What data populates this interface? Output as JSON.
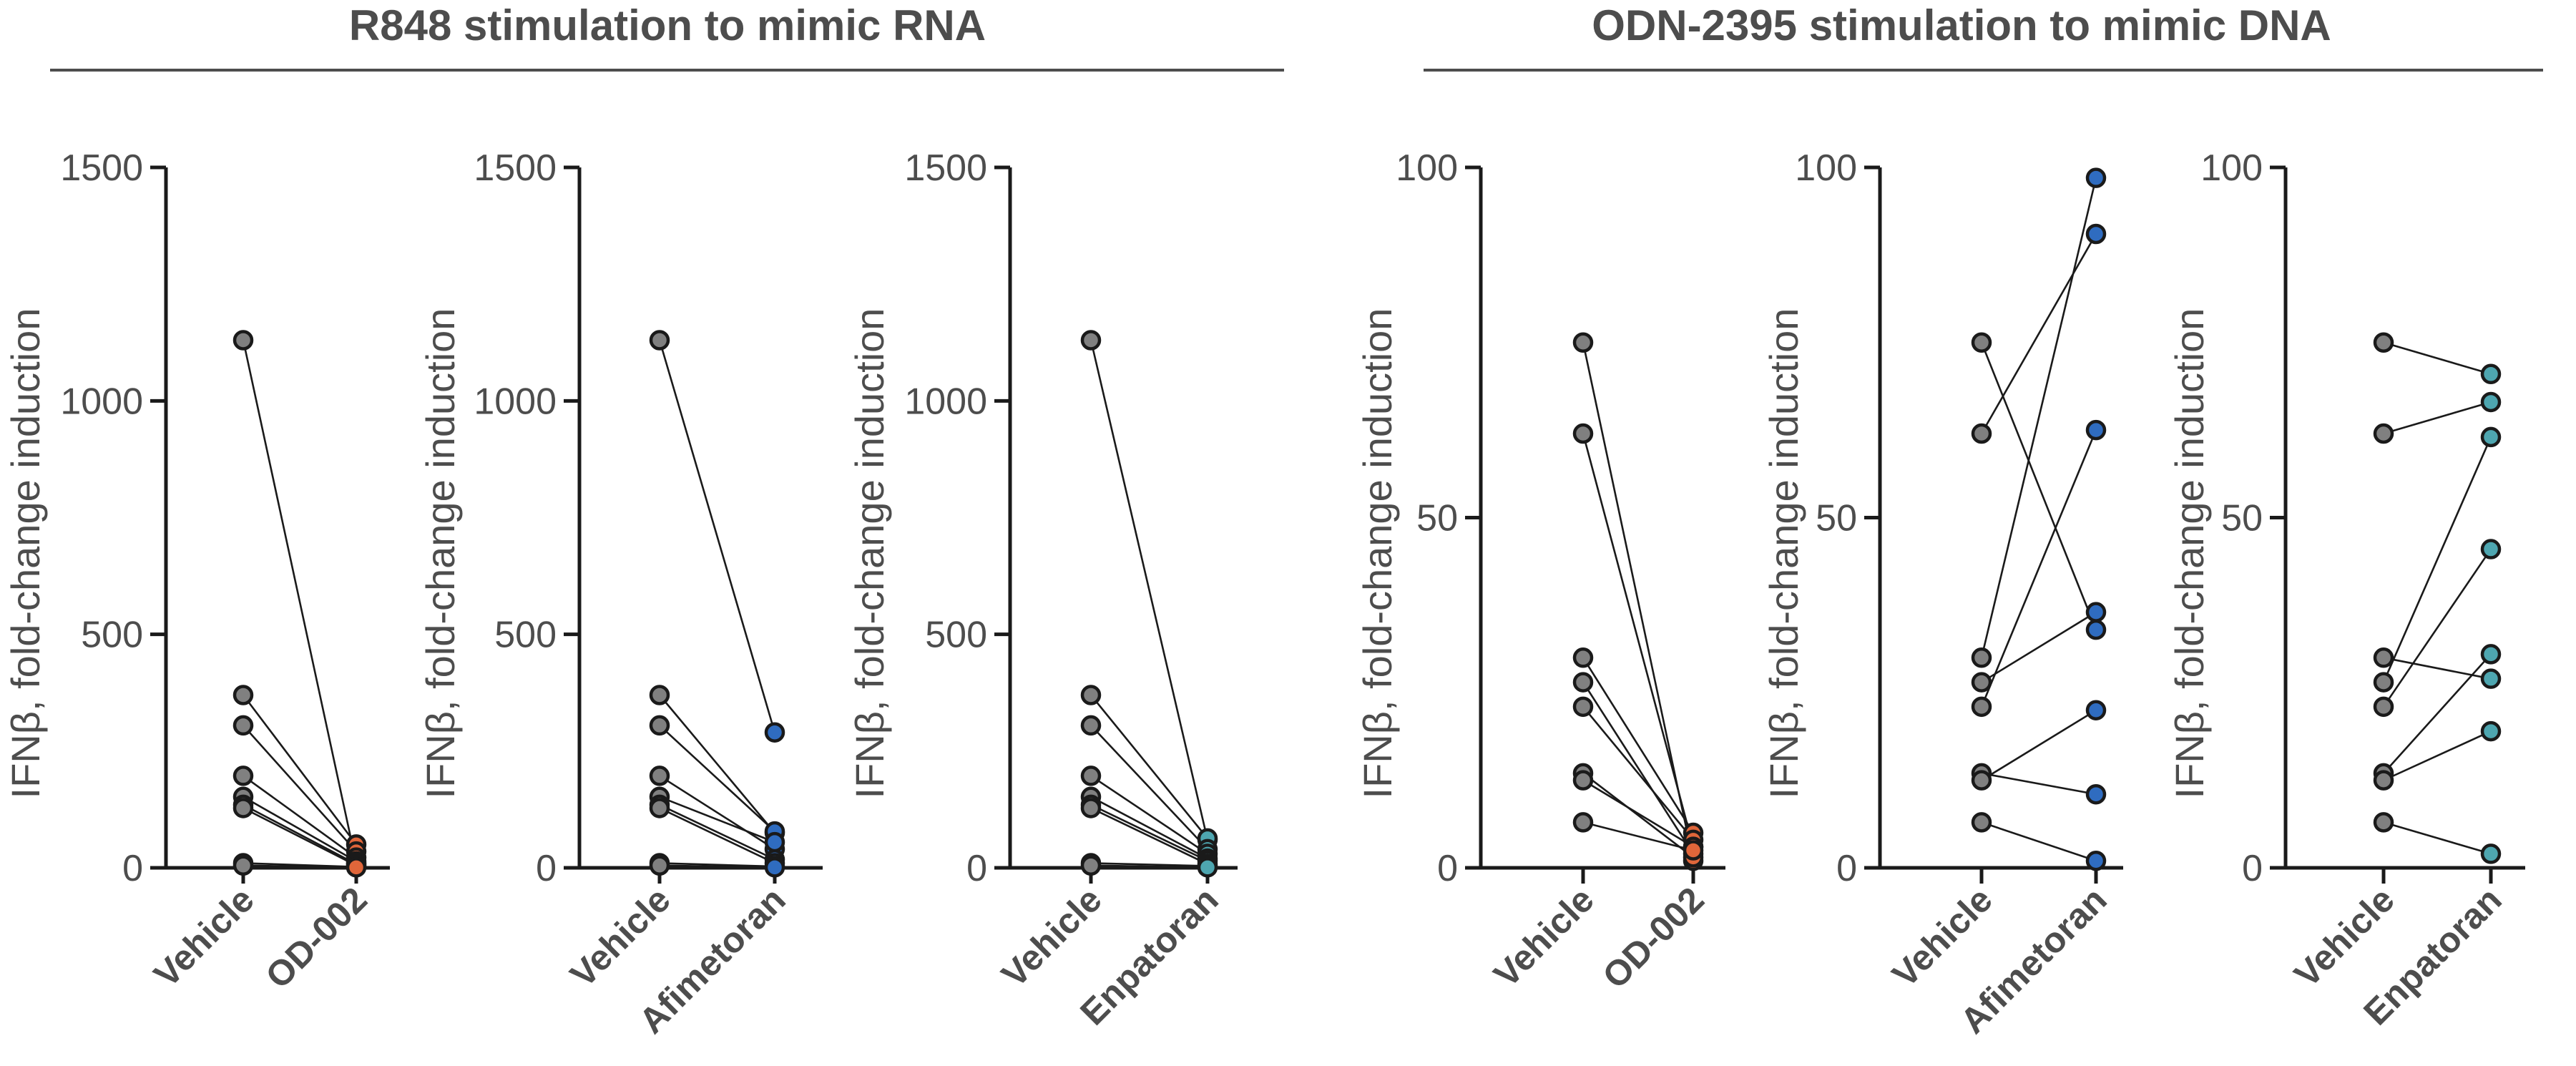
{
  "groups": [
    {
      "title": "R848 stimulation to mimic RNA",
      "panels": [
        0,
        1,
        2
      ]
    },
    {
      "title": "ODN-2395 stimulation to mimic DNA",
      "panels": [
        3,
        4,
        5
      ]
    }
  ],
  "chart_data": [
    {
      "type": "scatter",
      "ylabel": "IFNβ, fold-change induction",
      "ylim": [
        0,
        1500
      ],
      "yticks": [
        0,
        500,
        1000,
        1500
      ],
      "categories": [
        "Vehicle",
        "OD-002"
      ],
      "colors": [
        "#808080",
        "#e0663a"
      ],
      "pairs": [
        [
          1130,
          10
        ],
        [
          370,
          50
        ],
        [
          305,
          35
        ],
        [
          197,
          22
        ],
        [
          152,
          14
        ],
        [
          135,
          8
        ],
        [
          128,
          5
        ],
        [
          10,
          2
        ],
        [
          5,
          1
        ]
      ]
    },
    {
      "type": "scatter",
      "ylabel": "IFNβ, fold-change induction",
      "ylim": [
        0,
        1500
      ],
      "yticks": [
        0,
        500,
        1000,
        1500
      ],
      "categories": [
        "Vehicle",
        "Afimetoran"
      ],
      "colors": [
        "#808080",
        "#2f6cc0"
      ],
      "pairs": [
        [
          1130,
          290
        ],
        [
          370,
          75
        ],
        [
          305,
          78
        ],
        [
          197,
          40
        ],
        [
          152,
          55
        ],
        [
          135,
          18
        ],
        [
          128,
          10
        ],
        [
          10,
          3
        ],
        [
          5,
          1
        ]
      ]
    },
    {
      "type": "scatter",
      "ylabel": "IFNβ, fold-change induction",
      "ylim": [
        0,
        1500
      ],
      "yticks": [
        0,
        500,
        1000,
        1500
      ],
      "categories": [
        "Vehicle",
        "Enpatoran"
      ],
      "colors": [
        "#808080",
        "#4ea6b0"
      ],
      "pairs": [
        [
          1130,
          60
        ],
        [
          370,
          63
        ],
        [
          305,
          40
        ],
        [
          197,
          30
        ],
        [
          152,
          20
        ],
        [
          135,
          15
        ],
        [
          128,
          8
        ],
        [
          10,
          4
        ],
        [
          5,
          1
        ]
      ]
    },
    {
      "type": "scatter",
      "ylabel": "IFNβ, fold-change induction",
      "ylim": [
        0,
        100
      ],
      "yticks": [
        0,
        50,
        100
      ],
      "categories": [
        "Vehicle",
        "OD-002"
      ],
      "colors": [
        "#808080",
        "#e0663a"
      ],
      "pairs": [
        [
          75,
          1
        ],
        [
          62,
          3
        ],
        [
          30,
          5
        ],
        [
          26.5,
          2
        ],
        [
          23,
          4
        ],
        [
          13.5,
          1.5
        ],
        [
          12.5,
          3
        ],
        [
          6.5,
          2.5
        ]
      ]
    },
    {
      "type": "scatter",
      "ylabel": "IFNβ, fold-change induction",
      "ylim": [
        0,
        100
      ],
      "yticks": [
        0,
        50,
        100
      ],
      "categories": [
        "Vehicle",
        "Afimetoran"
      ],
      "colors": [
        "#808080",
        "#2f6cc0"
      ],
      "pairs": [
        [
          75,
          34
        ],
        [
          62,
          90.5
        ],
        [
          30,
          98.5
        ],
        [
          26.5,
          36.5
        ],
        [
          23,
          62.5
        ],
        [
          13.5,
          10.5
        ],
        [
          12.5,
          22.5
        ],
        [
          6.5,
          1
        ]
      ]
    },
    {
      "type": "scatter",
      "ylabel": "IFNβ, fold-change induction",
      "ylim": [
        0,
        100
      ],
      "yticks": [
        0,
        50,
        100
      ],
      "categories": [
        "Vehicle",
        "Enpatoran"
      ],
      "colors": [
        "#808080",
        "#4ea6b0"
      ],
      "pairs": [
        [
          75,
          70.5
        ],
        [
          62,
          66.5
        ],
        [
          30,
          27
        ],
        [
          26.5,
          61.5
        ],
        [
          23,
          45.5
        ],
        [
          13.5,
          30.5
        ],
        [
          12.5,
          19.5
        ],
        [
          6.5,
          2
        ]
      ]
    }
  ]
}
